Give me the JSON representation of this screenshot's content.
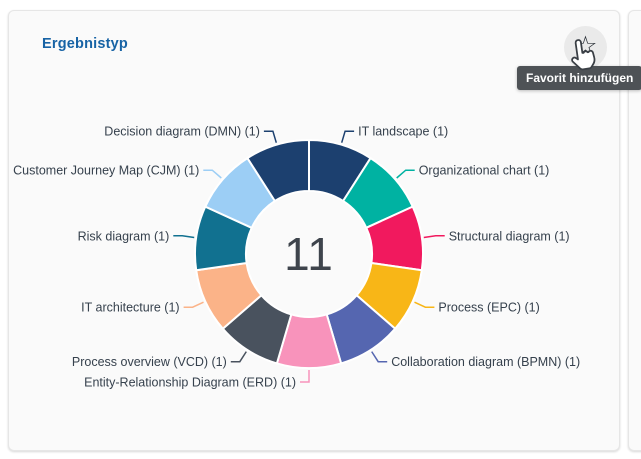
{
  "card": {
    "title": "Ergebnistyp"
  },
  "favorite": {
    "star_icon": "☆",
    "tooltip": "Favorit hinzufügen"
  },
  "chart_data": {
    "type": "pie",
    "subtype": "doughnut",
    "title": "Ergebnistyp",
    "center_label": "11",
    "total": 11,
    "legend": false,
    "label_format": "{label} ({value})",
    "slices": [
      {
        "label": "IT landscape",
        "value": 1,
        "color": "#1C406F"
      },
      {
        "label": "Organizational chart",
        "value": 1,
        "color": "#00B2A2"
      },
      {
        "label": "Structural diagram",
        "value": 1,
        "color": "#F1195E"
      },
      {
        "label": "Process (EPC)",
        "value": 1,
        "color": "#F8B617"
      },
      {
        "label": "Collaboration diagram (BPMN)",
        "value": 1,
        "color": "#5566B0"
      },
      {
        "label": "Entity-Relationship Diagram (ERD)",
        "value": 1,
        "color": "#F893BB"
      },
      {
        "label": "Process overview (VCD)",
        "value": 1,
        "color": "#49525E"
      },
      {
        "label": "IT architecture",
        "value": 1,
        "color": "#FBB388"
      },
      {
        "label": "Risk diagram",
        "value": 1,
        "color": "#117190"
      },
      {
        "label": "Customer Journey Map (CJM)",
        "value": 1,
        "color": "#9CCEF5"
      },
      {
        "label": "Decision diagram (DMN)",
        "value": 1,
        "color": "#1C406F"
      }
    ]
  }
}
